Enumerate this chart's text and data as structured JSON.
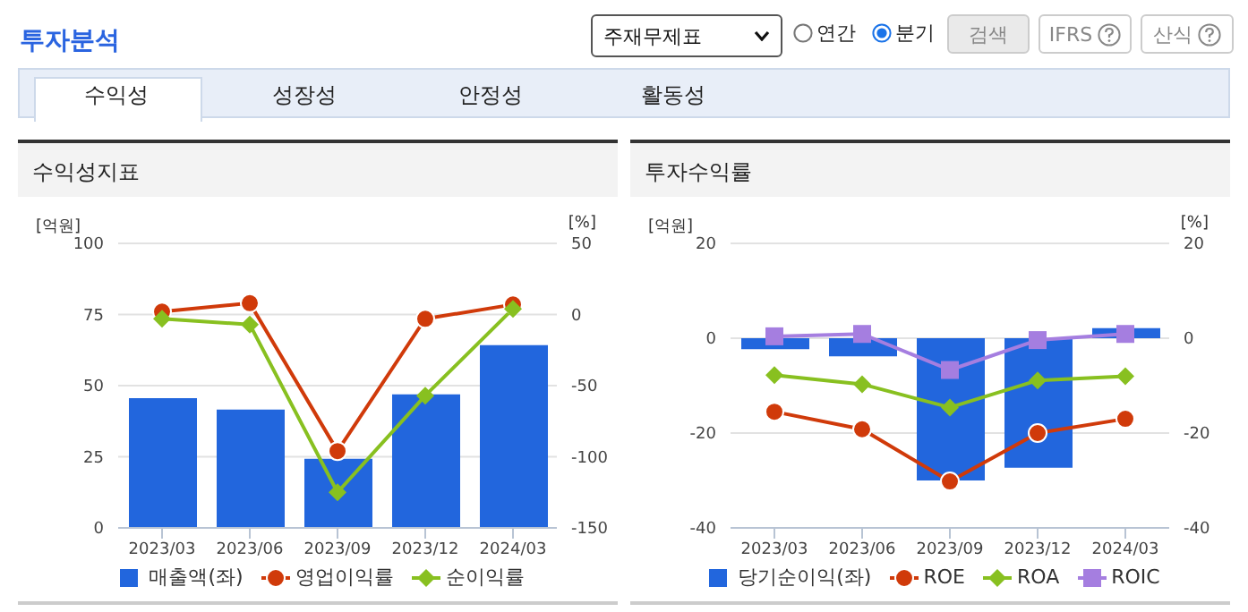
{
  "chart_data": [
    {
      "type": "bar",
      "title": "수익성지표",
      "ylabel": "[억원]",
      "y2label": "[%]",
      "annotations": [
        "투자분석",
        "주재무제표",
        "연간",
        "분기",
        "검색",
        "IFRS",
        "산식",
        "수익성",
        "성장성",
        "안정성",
        "활동성"
      ],
      "categories": [
        "2023/03",
        "2023/06",
        "2023/09",
        "2023/12",
        "2024/03"
      ],
      "series": [
        {
          "name": "매출액(좌)",
          "color": "#2266dd",
          "values": [
            45.6,
            41.6,
            24.3,
            46.9,
            64.2
          ]
        },
        {
          "name": "영업이익률",
          "type": "line",
          "axis": "y2",
          "marker": "circle",
          "color": "#d03a0a",
          "values": [
            2,
            8,
            -96,
            -3,
            7
          ]
        },
        {
          "name": "순이익률",
          "type": "line",
          "axis": "y2",
          "marker": "diamond",
          "color": "#88c020",
          "values": [
            -3,
            -7,
            -125,
            -57,
            4
          ]
        }
      ],
      "ylim": [
        0,
        100
      ],
      "yticks": [
        0,
        25,
        50,
        75,
        100
      ],
      "y2lim": [
        -150,
        50
      ],
      "y2ticks": [
        -150,
        -100,
        -50,
        0,
        50
      ],
      "grid": "y",
      "legend": "bottom"
    },
    {
      "type": "bar",
      "title": "투자수익률",
      "ylabel": "[억원]",
      "y2label": "[%]",
      "categories": [
        "2023/03",
        "2023/06",
        "2023/09",
        "2023/12",
        "2024/03"
      ],
      "series": [
        {
          "name": "당기순이익(좌)",
          "color": "#2266dd",
          "values": [
            -2.3,
            -3.8,
            -30,
            -27.3,
            2.1
          ]
        },
        {
          "name": "ROE",
          "type": "line",
          "axis": "y2",
          "marker": "circle",
          "color": "#d03a0a",
          "values": [
            -15.5,
            -19.2,
            -30.2,
            -20,
            -17
          ]
        },
        {
          "name": "ROA",
          "type": "line",
          "axis": "y2",
          "marker": "diamond",
          "color": "#88c020",
          "values": [
            -7.8,
            -9.7,
            -14.6,
            -8.9,
            -8
          ]
        },
        {
          "name": "ROIC",
          "type": "line",
          "axis": "y2",
          "marker": "square",
          "color": "#a57ee0",
          "values": [
            0.4,
            0.9,
            -6.7,
            -0.4,
            0.9
          ]
        }
      ],
      "ylim": [
        -40,
        20
      ],
      "yticks": [
        -40,
        -20,
        0,
        20
      ],
      "y2lim": [
        -40,
        20
      ],
      "y2ticks": [
        -40,
        -20,
        0,
        20
      ],
      "grid": "y",
      "legend": "bottom"
    }
  ]
}
